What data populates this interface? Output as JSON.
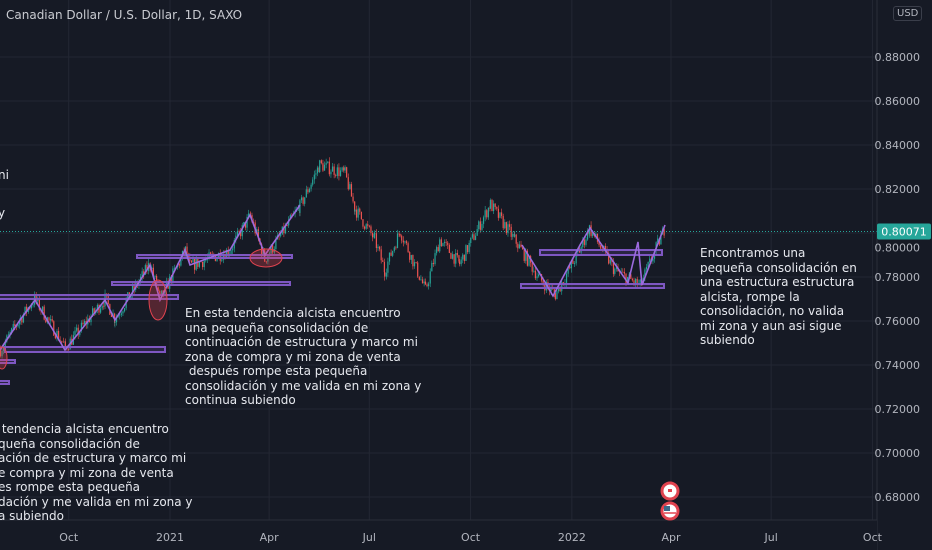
{
  "header": {
    "title": "Canadian Dollar / U.S. Dollar, 1D, SAXO",
    "currency": "USD"
  },
  "chart_data": {
    "type": "candlestick",
    "title": "Canadian Dollar / U.S. Dollar, 1D, SAXO",
    "ylim": [
      0.67,
      0.89
    ],
    "y_ticks": [
      "0.88000",
      "0.86000",
      "0.84000",
      "0.82000",
      "0.80000",
      "0.78000",
      "0.76000",
      "0.74000",
      "0.72000",
      "0.70000",
      "0.68000"
    ],
    "x_ticks": [
      "Oct",
      "2021",
      "Apr",
      "Jul",
      "Oct",
      "2022",
      "Apr",
      "Jul",
      "Oct"
    ],
    "x_tick_dates": [
      "2020-10-01",
      "2021-01-01",
      "2021-04-01",
      "2021-07-01",
      "2021-10-01",
      "2022-01-01",
      "2022-04-01",
      "2022-07-01",
      "2022-10-01"
    ],
    "last_price": "0.80071",
    "last_price_value": 0.80071,
    "grid": true,
    "colors": {
      "up": "#26a69a",
      "down": "#ef5350",
      "drawing": "#9c6ade",
      "zone": "#7e57c2",
      "ellipse": "#e0434f",
      "last_price": "#26a69a",
      "background": "#161a25"
    },
    "price_path": [
      [
        "2020-07-31",
        0.747
      ],
      [
        "2020-08-18",
        0.761
      ],
      [
        "2020-08-31",
        0.77
      ],
      [
        "2020-09-28",
        0.748
      ],
      [
        "2020-11-03",
        0.77
      ],
      [
        "2020-11-12",
        0.761
      ],
      [
        "2020-12-14",
        0.786
      ],
      [
        "2020-12-23",
        0.77
      ],
      [
        "2021-01-15",
        0.792
      ],
      [
        "2021-01-19",
        0.785
      ],
      [
        "2021-02-24",
        0.792
      ],
      [
        "2021-03-15",
        0.808
      ],
      [
        "2021-03-28",
        0.788
      ],
      [
        "2021-04-29",
        0.812
      ],
      [
        "2021-05-17",
        0.831
      ],
      [
        "2021-06-09",
        0.827
      ],
      [
        "2021-06-18",
        0.811
      ],
      [
        "2021-07-06",
        0.797
      ],
      [
        "2021-07-15",
        0.783
      ],
      [
        "2021-07-29",
        0.801
      ],
      [
        "2021-08-21",
        0.774
      ],
      [
        "2021-09-03",
        0.797
      ],
      [
        "2021-09-21",
        0.786
      ],
      [
        "2021-10-19",
        0.813
      ],
      [
        "2021-11-10",
        0.797
      ],
      [
        "2021-12-03",
        0.779
      ],
      [
        "2021-12-17",
        0.772
      ],
      [
        "2022-01-08",
        0.792
      ],
      [
        "2022-01-17",
        0.802
      ],
      [
        "2022-02-09",
        0.783
      ],
      [
        "2022-03-04",
        0.776
      ],
      [
        "2022-03-27",
        0.803
      ]
    ]
  },
  "annotations": {
    "left_top_fragment_1": "ni",
    "left_top_fragment_2": "y",
    "middle_note": "En esta tendencia alcista encuentro\nuna pequeña consolidación de\ncontinuación de estructura y marco mi\nzona de compra y mi zona de venta\n después rompe esta pequeña\nconsolidación y me valida en mi zona y\ncontinua subiendo",
    "left_note": " tendencia alcista encuentro\nqueña consolidación de\nación de estructura y marco mi\ne compra y mi zona de venta\nes rompe esta pequeña\ndación y me valida en mi zona y\na subiendo",
    "right_note": "Encontramos una\npequeña consolidación en\nuna estructura estructura\nalcista, rompe la\nconsolidación, no valida\nmi zona y aun asi sigue\nsubiendo"
  },
  "events": [
    {
      "icon": "canada-flag-icon"
    },
    {
      "icon": "us-flag-icon"
    }
  ]
}
